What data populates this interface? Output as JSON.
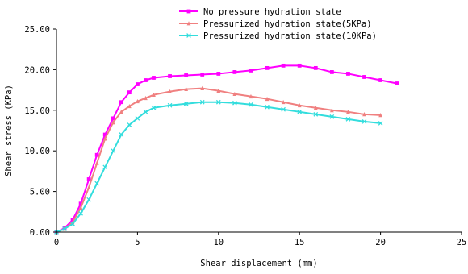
{
  "chart_data": {
    "type": "line",
    "title": "",
    "xlabel": "Shear displacement (mm)",
    "ylabel": "Shear stress (KPa)",
    "xlim": [
      0,
      25
    ],
    "ylim": [
      0,
      25
    ],
    "x_ticks": [
      "0",
      "5",
      "10",
      "15",
      "20",
      "25"
    ],
    "y_ticks": [
      "0.00",
      "5.00",
      "10.00",
      "15.00",
      "20.00",
      "25.00"
    ],
    "grid": false,
    "legend_position": "top",
    "series": [
      {
        "name": "No pressure hydration state",
        "color": "#ff00ff",
        "marker": "square",
        "x": [
          0,
          0.5,
          1,
          1.5,
          2,
          2.5,
          3,
          3.5,
          4,
          4.5,
          5,
          5.5,
          6,
          7,
          8,
          9,
          10,
          11,
          12,
          13,
          14,
          15,
          16,
          17,
          18,
          19,
          20,
          21
        ],
        "y": [
          0,
          0.5,
          1.5,
          3.5,
          6.5,
          9.5,
          12.0,
          14.0,
          16.0,
          17.2,
          18.2,
          18.7,
          19.0,
          19.2,
          19.3,
          19.4,
          19.5,
          19.7,
          19.9,
          20.2,
          20.5,
          20.5,
          20.2,
          19.7,
          19.5,
          19.1,
          18.7,
          18.3
        ]
      },
      {
        "name": "Pressurized hydration state(5KPa)",
        "color": "#f08080",
        "marker": "triangle",
        "x": [
          0,
          0.5,
          1,
          1.5,
          2,
          2.5,
          3,
          3.5,
          4,
          4.5,
          5,
          5.5,
          6,
          7,
          8,
          9,
          10,
          11,
          12,
          13,
          14,
          15,
          16,
          17,
          18,
          19,
          20
        ],
        "y": [
          0,
          0.4,
          1.2,
          3.0,
          5.5,
          8.5,
          11.5,
          13.5,
          14.8,
          15.5,
          16.1,
          16.5,
          16.9,
          17.3,
          17.6,
          17.7,
          17.4,
          17.0,
          16.7,
          16.4,
          16.0,
          15.6,
          15.3,
          15.0,
          14.8,
          14.5,
          14.4
        ]
      },
      {
        "name": "Pressurized hydration state(10KPa)",
        "color": "#33dddd",
        "marker": "x",
        "x": [
          0,
          0.5,
          1,
          1.5,
          2,
          2.5,
          3,
          3.5,
          4,
          4.5,
          5,
          5.5,
          6,
          7,
          8,
          9,
          10,
          11,
          12,
          13,
          14,
          15,
          16,
          17,
          18,
          19,
          20
        ],
        "y": [
          0,
          0.4,
          1.0,
          2.3,
          4.0,
          6.0,
          8.0,
          10.0,
          12.0,
          13.2,
          14.0,
          14.8,
          15.3,
          15.6,
          15.8,
          16.0,
          16.0,
          15.9,
          15.7,
          15.4,
          15.1,
          14.8,
          14.5,
          14.2,
          13.9,
          13.6,
          13.4
        ]
      }
    ]
  }
}
